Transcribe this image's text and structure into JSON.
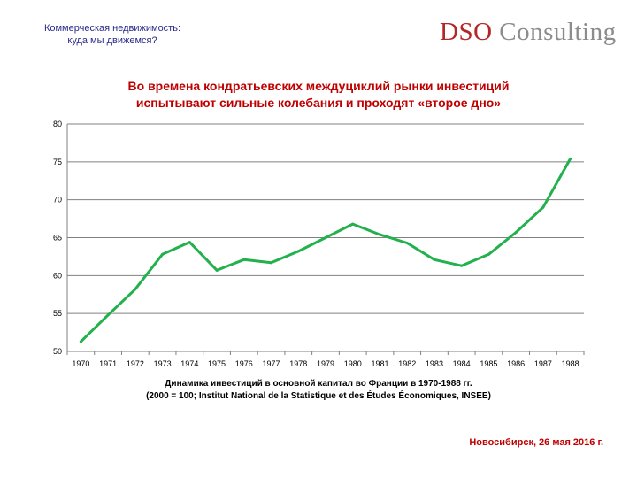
{
  "header": {
    "subtitle_line1": "Коммерческая недвижимость:",
    "subtitle_line2": "куда мы движемся?",
    "logo_part1": "DSO",
    "logo_part2": "Consulting"
  },
  "slide": {
    "title_line1": "Во времена кондратьевских междуциклий рынки инвестиций",
    "title_line2": "испытывают сильные колебания и проходят «второе дно»",
    "caption_line1": "Динамика инвестиций в основной капитал во Франции в 1970-1988 гг.",
    "caption_line2": "(2000 = 100; Institut National de la Statistique et des Études Économiques, INSEE)",
    "footer": "Новосибирск, 26 мая 2016 г."
  },
  "colors": {
    "line": "#22b14c",
    "title": "#c00000",
    "header_text": "#2a2a8a",
    "grid": "#808080"
  },
  "chart_data": {
    "type": "line",
    "categories": [
      "1970",
      "1971",
      "1972",
      "1973",
      "1974",
      "1975",
      "1976",
      "1977",
      "1978",
      "1979",
      "1980",
      "1981",
      "1982",
      "1983",
      "1984",
      "1985",
      "1986",
      "1987",
      "1988"
    ],
    "series": [
      {
        "values": [
          51.3,
          54.8,
          58.2,
          62.8,
          64.4,
          60.7,
          62.1,
          61.7,
          63.2,
          65.0,
          66.8,
          65.4,
          64.3,
          62.1,
          61.3,
          62.8,
          65.7,
          69.0,
          75.4
        ]
      }
    ],
    "ylim": [
      50,
      80
    ],
    "yticks": [
      50,
      55,
      60,
      65,
      70,
      75,
      80
    ],
    "grid": true
  }
}
